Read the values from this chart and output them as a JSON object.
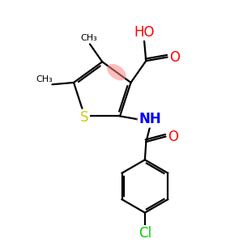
{
  "background": "#ffffff",
  "C_color": "#000000",
  "O_color": "#ff0000",
  "N_color": "#0000ff",
  "S_color": "#cccc00",
  "Cl_color": "#00cc00",
  "highlight_color": "#ff8888",
  "highlight_alpha": 0.55,
  "lw": 1.6,
  "figsize": [
    3.0,
    3.0
  ],
  "dpi": 100,
  "xlim": [
    0,
    10
  ],
  "ylim": [
    0,
    10
  ]
}
